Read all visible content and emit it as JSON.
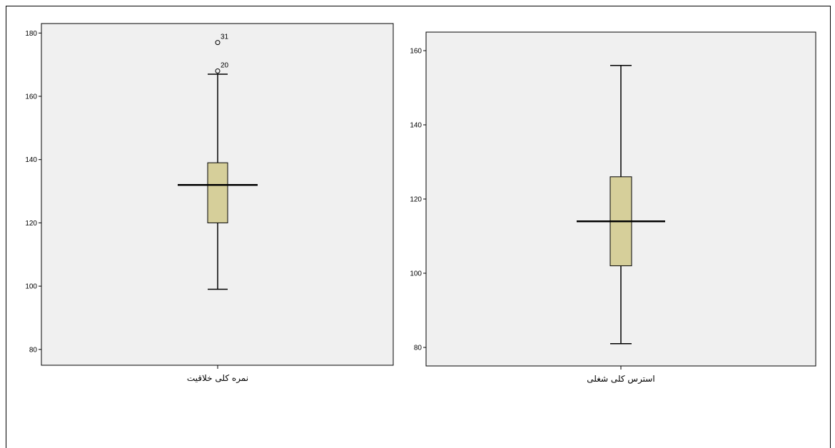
{
  "chart_data": [
    {
      "type": "boxplot",
      "category": "نمره کلی خلاقیت",
      "ylim": [
        75,
        183
      ],
      "yticks": [
        80,
        100,
        120,
        140,
        160,
        180
      ],
      "min": 99,
      "q1": 120,
      "median": 132,
      "q3": 139,
      "max": 167,
      "outliers": [
        {
          "value": 168,
          "label": "20"
        },
        {
          "value": 177,
          "label": "31"
        }
      ],
      "grid": false
    },
    {
      "type": "boxplot",
      "category": "استرس کلی شغلی",
      "ylim": [
        75,
        165
      ],
      "yticks": [
        80,
        100,
        120,
        140,
        160
      ],
      "min": 81,
      "q1": 102,
      "median": 114,
      "q3": 126,
      "max": 156,
      "outliers": [],
      "grid": false
    }
  ],
  "colors": {
    "plot_background": "#f0f0f0",
    "box_fill": "#d6cf9a",
    "line": "#000000"
  }
}
